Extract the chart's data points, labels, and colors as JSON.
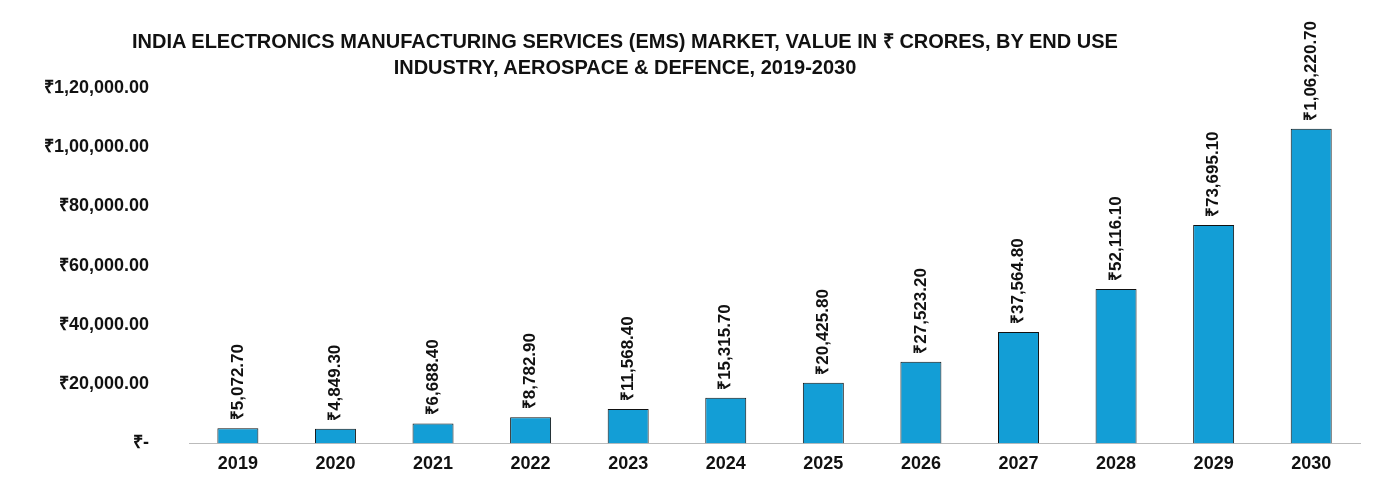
{
  "chart_data": {
    "type": "bar",
    "title": "INDIA ELECTRONICS MANUFACTURING SERVICES (EMS) MARKET, VALUE IN ₹ CRORES, BY END USE INDUSTRY, AEROSPACE & DEFENCE, 2019-2030",
    "categories": [
      "2019",
      "2020",
      "2021",
      "2022",
      "2023",
      "2024",
      "2025",
      "2026",
      "2027",
      "2028",
      "2029",
      "2030"
    ],
    "values": [
      5072.7,
      4849.3,
      6688.4,
      8782.9,
      11568.4,
      15315.7,
      20425.8,
      27523.2,
      37564.8,
      52116.1,
      73695.1,
      106220.7
    ],
    "value_labels": [
      "₹5,072.70",
      "₹4,849.30",
      "₹6,688.40",
      "₹8,782.90",
      "₹11,568.40",
      "₹15,315.70",
      "₹20,425.80",
      "₹27,523.20",
      "₹37,564.80",
      "₹52,116.10",
      "₹73,695.10",
      "₹1,06,220.70"
    ],
    "color": "#139ed6",
    "ylim": [
      0,
      120000
    ],
    "yticks": [
      {
        "value": 0,
        "label": "₹-"
      },
      {
        "value": 20000,
        "label": "₹20,000.00"
      },
      {
        "value": 40000,
        "label": "₹40,000.00"
      },
      {
        "value": 60000,
        "label": "₹60,000.00"
      },
      {
        "value": 80000,
        "label": "₹80,000.00"
      },
      {
        "value": 100000,
        "label": "₹1,00,000.00"
      },
      {
        "value": 120000,
        "label": "₹1,20,000.00"
      }
    ],
    "grid": false,
    "legend": false
  }
}
